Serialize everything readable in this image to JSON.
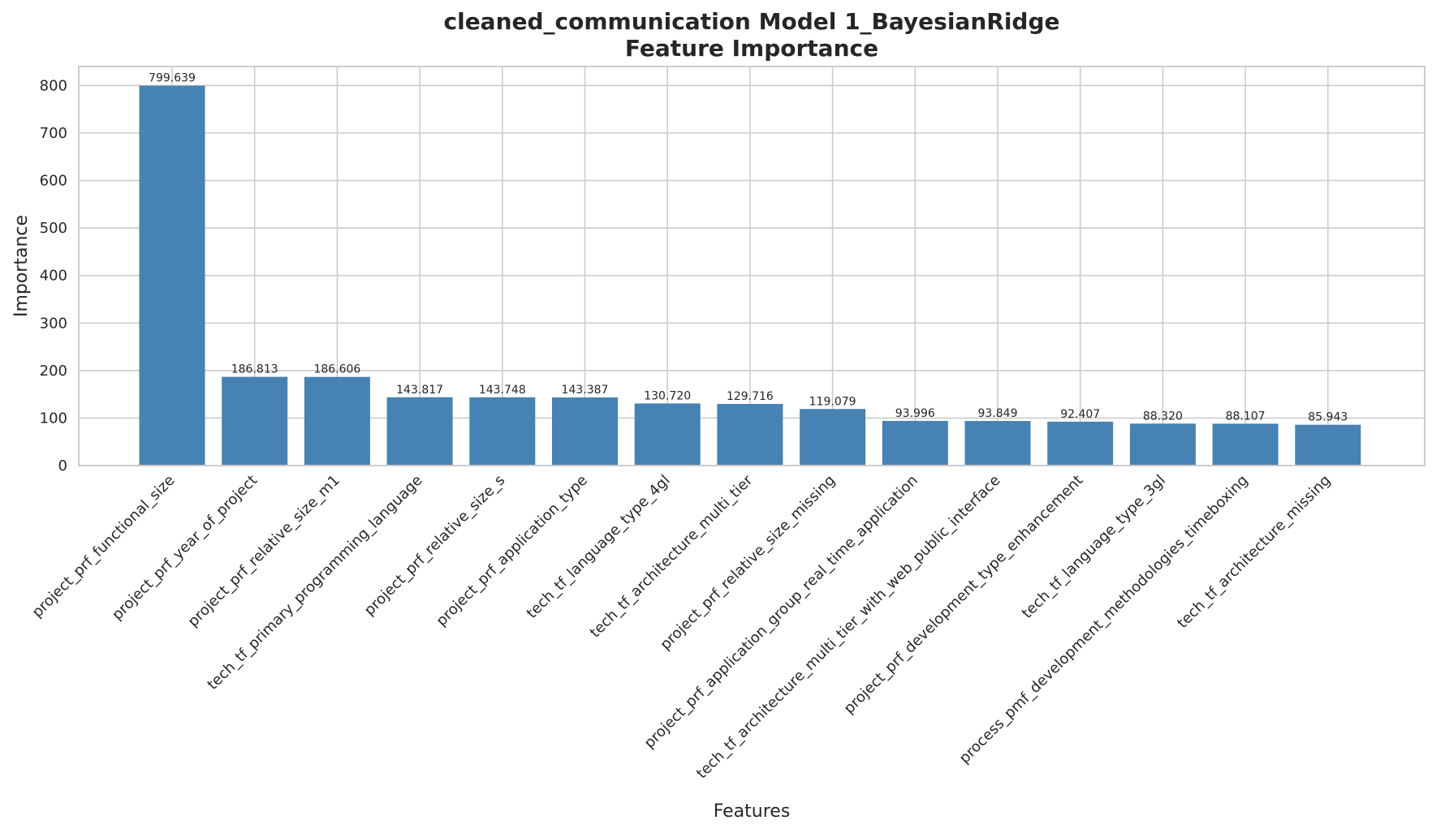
{
  "chart_data": {
    "type": "bar",
    "title": "cleaned_communication Model 1_BayesianRidge",
    "subtitle": "Feature Importance",
    "xlabel": "Features",
    "ylabel": "Importance",
    "ylim": [
      0,
      840
    ],
    "yticks": [
      0,
      100,
      200,
      300,
      400,
      500,
      600,
      700,
      800
    ],
    "grid": true,
    "bar_color": "#4682b4",
    "categories": [
      "project_prf_functional_size",
      "project_prf_year_of_project",
      "project_prf_relative_size_m1",
      "tech_tf_primary_programming_language",
      "project_prf_relative_size_s",
      "project_prf_application_type",
      "tech_tf_language_type_4gl",
      "tech_tf_architecture_multi_tier",
      "project_prf_relative_size_missing",
      "project_prf_application_group_real_time_application",
      "tech_tf_architecture_multi_tier_with_web_public_interface",
      "project_prf_development_type_enhancement",
      "tech_tf_language_type_3gl",
      "process_pmf_development_methodologies_timeboxing",
      "tech_tf_architecture_missing"
    ],
    "values": [
      799.639,
      186.813,
      186.606,
      143.817,
      143.748,
      143.387,
      130.72,
      129.716,
      119.079,
      93.996,
      93.849,
      92.407,
      88.32,
      88.107,
      85.943
    ],
    "value_labels": [
      "799.639",
      "186.813",
      "186.606",
      "143.817",
      "143.748",
      "143.387",
      "130.720",
      "129.716",
      "119.079",
      "93.996",
      "93.849",
      "92.407",
      "88.320",
      "88.107",
      "85.943"
    ]
  }
}
